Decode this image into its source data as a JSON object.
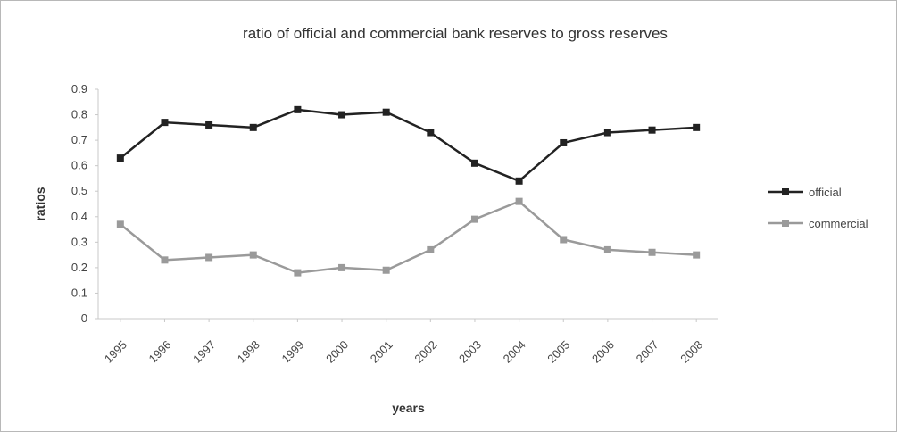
{
  "chart_data": {
    "type": "line",
    "title": "ratio of official and commercial bank reserves to gross reserves",
    "xlabel": "years",
    "ylabel": "ratios",
    "ylim": [
      0,
      0.9
    ],
    "yticks": [
      "0",
      "0.1",
      "0.2",
      "0.3",
      "0.4",
      "0.5",
      "0.6",
      "0.7",
      "0.8",
      "0.9"
    ],
    "grid": false,
    "legend_position": "right",
    "categories": [
      "1995",
      "1996",
      "1997",
      "1998",
      "1999",
      "2000",
      "2001",
      "2002",
      "2003",
      "2004",
      "2005",
      "2006",
      "2007",
      "2008"
    ],
    "series": [
      {
        "name": "official",
        "color": "#222222",
        "values": [
          0.63,
          0.77,
          0.76,
          0.75,
          0.82,
          0.8,
          0.81,
          0.73,
          0.61,
          0.54,
          0.69,
          0.73,
          0.74,
          0.75
        ]
      },
      {
        "name": "commercial",
        "color": "#9a9a9a",
        "values": [
          0.37,
          0.23,
          0.24,
          0.25,
          0.18,
          0.2,
          0.19,
          0.27,
          0.39,
          0.46,
          0.31,
          0.27,
          0.26,
          0.25
        ]
      }
    ]
  }
}
